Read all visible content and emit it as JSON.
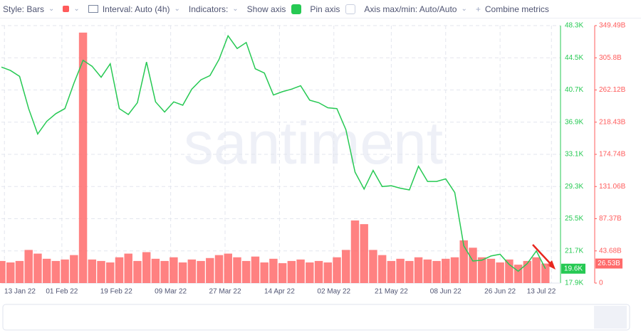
{
  "toolbar": {
    "style": "Style: Bars",
    "interval": "Interval: Auto (4h)",
    "indicators": "Indicators:",
    "show_axis": "Show axis",
    "show_axis_checked": true,
    "pin_axis": "Pin axis",
    "pin_axis_checked": false,
    "axis_minmax": "Axis max/min: Auto/Auto",
    "combine": "Combine metrics"
  },
  "chart_data": {
    "type": "line",
    "watermark": "santiment",
    "grid": true,
    "x": [
      "2022-01-12",
      "2022-01-15",
      "2022-01-18",
      "2022-01-21",
      "2022-01-24",
      "2022-01-27",
      "2022-01-30",
      "2022-02-02",
      "2022-02-05",
      "2022-02-08",
      "2022-02-11",
      "2022-02-14",
      "2022-02-17",
      "2022-02-20",
      "2022-02-23",
      "2022-02-26",
      "2022-03-01",
      "2022-03-04",
      "2022-03-07",
      "2022-03-10",
      "2022-03-13",
      "2022-03-16",
      "2022-03-19",
      "2022-03-22",
      "2022-03-25",
      "2022-03-28",
      "2022-03-31",
      "2022-04-03",
      "2022-04-06",
      "2022-04-09",
      "2022-04-12",
      "2022-04-15",
      "2022-04-18",
      "2022-04-21",
      "2022-04-24",
      "2022-04-27",
      "2022-04-30",
      "2022-05-03",
      "2022-05-06",
      "2022-05-09",
      "2022-05-12",
      "2022-05-15",
      "2022-05-18",
      "2022-05-21",
      "2022-05-24",
      "2022-05-27",
      "2022-05-30",
      "2022-06-02",
      "2022-06-05",
      "2022-06-08",
      "2022-06-11",
      "2022-06-14",
      "2022-06-17",
      "2022-06-20",
      "2022-06-23",
      "2022-06-26",
      "2022-06-29",
      "2022-07-02",
      "2022-07-05",
      "2022-07-08",
      "2022-07-11"
    ],
    "xlim": [
      "2022-01-12",
      "2022-07-16"
    ],
    "xticks": [
      {
        "value": "2022-01-13",
        "label": "13 Jan 22"
      },
      {
        "value": "2022-02-01",
        "label": "01 Feb 22"
      },
      {
        "value": "2022-02-19",
        "label": "19 Feb 22"
      },
      {
        "value": "2022-03-09",
        "label": "09 Mar 22"
      },
      {
        "value": "2022-03-27",
        "label": "27 Mar 22"
      },
      {
        "value": "2022-04-14",
        "label": "14 Apr 22"
      },
      {
        "value": "2022-05-02",
        "label": "02 May 22"
      },
      {
        "value": "2022-05-21",
        "label": "21 May 22"
      },
      {
        "value": "2022-06-08",
        "label": "08 Jun 22"
      },
      {
        "value": "2022-06-26",
        "label": "26 Jun 22"
      },
      {
        "value": "2022-07-13",
        "label": "13 Jul 22"
      }
    ],
    "ylim": [
      17900,
      48300
    ],
    "yticks": [
      {
        "value": 17900,
        "label": "17.9K"
      },
      {
        "value": 21700,
        "label": "21.7K"
      },
      {
        "value": 25500,
        "label": "25.5K"
      },
      {
        "value": 29300,
        "label": "29.3K"
      },
      {
        "value": 33100,
        "label": "33.1K"
      },
      {
        "value": 36900,
        "label": "36.9K"
      },
      {
        "value": 40700,
        "label": "40.7K"
      },
      {
        "value": 44500,
        "label": "44.5K"
      },
      {
        "value": 48300,
        "label": "48.3K"
      }
    ],
    "y2lim": [
      0,
      349.49
    ],
    "y2ticks": [
      0,
      {
        "value": 43.68,
        "label": "43.68B"
      },
      {
        "value": 87.37,
        "label": "87.37B"
      },
      {
        "value": 131.06,
        "label": "131.06B"
      },
      {
        "value": 174.74,
        "label": "174.74B"
      },
      {
        "value": 218.43,
        "label": "218.43B"
      },
      {
        "value": 262.12,
        "label": "262.12B"
      },
      {
        "value": 305.8,
        "label": "305.8B"
      },
      {
        "value": 349.49,
        "label": "349.49B"
      }
    ],
    "series": [
      {
        "type": "bar",
        "axis": "y2",
        "color": "#ff6b6b",
        "last_label": "26.53B",
        "values": [
          30,
          28,
          30,
          45,
          40,
          33,
          30,
          32,
          38,
          340,
          32,
          30,
          28,
          35,
          40,
          30,
          42,
          33,
          30,
          35,
          28,
          32,
          30,
          34,
          38,
          40,
          35,
          30,
          36,
          28,
          33,
          27,
          30,
          32,
          28,
          30,
          28,
          35,
          45,
          85,
          80,
          45,
          38,
          30,
          33,
          30,
          35,
          32,
          30,
          33,
          35,
          58,
          48,
          35,
          33,
          28,
          32,
          25,
          30,
          35,
          26.53
        ]
      },
      {
        "type": "line",
        "axis": "y",
        "color": "#26c953",
        "last_label": "19.6K",
        "values": [
          43400,
          43000,
          42300,
          38500,
          35500,
          37000,
          37900,
          38500,
          41500,
          44200,
          43500,
          42200,
          43800,
          38500,
          37800,
          39200,
          44000,
          39300,
          38100,
          39300,
          38900,
          40800,
          41900,
          42400,
          44300,
          47100,
          45600,
          46300,
          43200,
          42700,
          40100,
          40500,
          40800,
          41200,
          39500,
          39200,
          38600,
          38500,
          36000,
          31000,
          29000,
          31200,
          29300,
          29400,
          29100,
          28900,
          31700,
          29900,
          29900,
          30200,
          28600,
          22300,
          20500,
          20600,
          21100,
          21300,
          20100,
          19300,
          20200,
          21700,
          19600
        ]
      }
    ]
  }
}
